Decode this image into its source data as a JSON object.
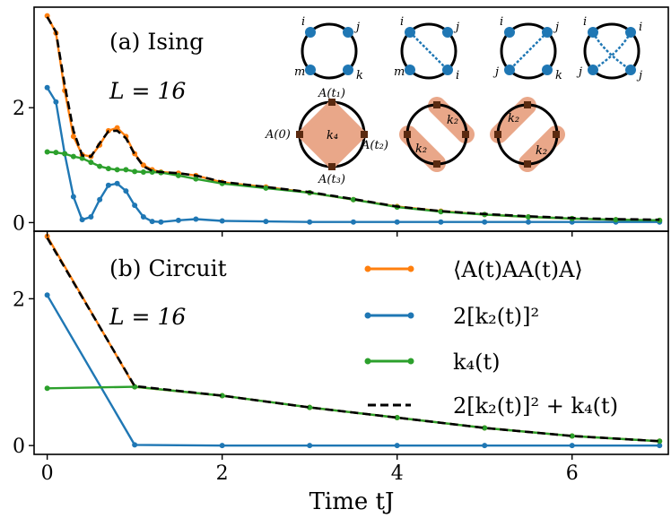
{
  "xlabel": "Time tJ",
  "legend": [
    {
      "label": "⟨A(t)AA(t)A⟩",
      "color": "#ff7f0e",
      "style": "solid-marker"
    },
    {
      "label": "2[k₂(t)]²",
      "color": "#1f77b4",
      "style": "solid-marker"
    },
    {
      "label": "k₄(t)",
      "color": "#2ca02c",
      "style": "solid-marker"
    },
    {
      "label": "2[k₂(t)]² + k₄(t)",
      "color": "#000000",
      "style": "dashed"
    }
  ],
  "panel_a": {
    "title": "(a)  Ising",
    "subtitle": "L = 16",
    "diagrams": {
      "circle1_labels": [
        "i",
        "j",
        "m",
        "k"
      ],
      "circle2_labels": [
        "i",
        "j",
        "m",
        "i"
      ],
      "circle3_labels": [
        "i",
        "j",
        "j",
        "k"
      ],
      "circle4_labels": [
        "i",
        "i",
        "j",
        "j"
      ],
      "k4_labels": [
        "A(t₁)",
        "A(0)",
        "A(t₂)",
        "A(t₃)",
        "k₄"
      ],
      "k2_labels": [
        "k₂",
        "k₂",
        "k₂",
        "k₂"
      ]
    }
  },
  "panel_b": {
    "title": "(b)  Circuit",
    "subtitle": "L = 16"
  },
  "chart_data": [
    {
      "type": "line",
      "panel": "a",
      "xlim": [
        -0.15,
        7.1
      ],
      "ylim": [
        -0.15,
        3.75
      ],
      "xticks": [
        0,
        2,
        4,
        6
      ],
      "yticks": [
        0,
        2
      ],
      "ytick_labels": [
        "0",
        "2"
      ],
      "series": [
        {
          "name": "⟨A(t)AA(t)A⟩",
          "color": "#ff7f0e",
          "x": [
            0,
            0.1,
            0.2,
            0.3,
            0.4,
            0.5,
            0.6,
            0.7,
            0.8,
            0.9,
            1.0,
            1.1,
            1.2,
            1.3,
            1.5,
            1.7,
            2.0,
            2.5,
            3.0,
            3.5,
            4.0,
            4.5,
            5.0,
            5.5,
            6.0,
            6.5,
            7.0
          ],
          "y": [
            3.6,
            3.3,
            2.3,
            1.5,
            1.18,
            1.15,
            1.35,
            1.6,
            1.65,
            1.5,
            1.2,
            1.0,
            0.92,
            0.88,
            0.86,
            0.82,
            0.7,
            0.62,
            0.52,
            0.4,
            0.28,
            0.2,
            0.14,
            0.1,
            0.07,
            0.05,
            0.04
          ]
        },
        {
          "name": "2[k₂(t)]²",
          "color": "#1f77b4",
          "x": [
            0,
            0.1,
            0.2,
            0.3,
            0.4,
            0.5,
            0.6,
            0.7,
            0.8,
            0.9,
            1.0,
            1.1,
            1.2,
            1.3,
            1.5,
            1.7,
            2.0,
            2.5,
            3.0,
            3.5,
            4.0,
            4.5,
            5.0,
            5.5,
            6.0,
            6.5,
            7.0
          ],
          "y": [
            2.35,
            2.1,
            1.2,
            0.45,
            0.05,
            0.1,
            0.4,
            0.65,
            0.68,
            0.55,
            0.3,
            0.1,
            0.02,
            0.01,
            0.04,
            0.06,
            0.03,
            0.02,
            0.01,
            0.01,
            0.01,
            0.01,
            0.01,
            0.01,
            0.01,
            0.01,
            0.01
          ]
        },
        {
          "name": "k₄(t)",
          "color": "#2ca02c",
          "x": [
            0,
            0.1,
            0.2,
            0.3,
            0.4,
            0.5,
            0.6,
            0.7,
            0.8,
            0.9,
            1.0,
            1.1,
            1.2,
            1.3,
            1.5,
            1.7,
            2.0,
            2.5,
            3.0,
            3.5,
            4.0,
            4.5,
            5.0,
            5.5,
            6.0,
            6.5,
            7.0
          ],
          "y": [
            1.23,
            1.22,
            1.2,
            1.15,
            1.12,
            1.05,
            0.98,
            0.94,
            0.92,
            0.92,
            0.89,
            0.88,
            0.88,
            0.87,
            0.82,
            0.76,
            0.68,
            0.6,
            0.52,
            0.4,
            0.27,
            0.19,
            0.14,
            0.1,
            0.07,
            0.05,
            0.04
          ]
        },
        {
          "name": "2[k₂(t)]² + k₄(t)",
          "color": "#000000",
          "dashed": true,
          "x": [
            0,
            0.1,
            0.2,
            0.3,
            0.4,
            0.5,
            0.6,
            0.7,
            0.8,
            0.9,
            1.0,
            1.1,
            1.2,
            1.3,
            1.5,
            1.7,
            2.0,
            2.5,
            3.0,
            3.5,
            4.0,
            4.5,
            5.0,
            5.5,
            6.0,
            6.5,
            7.0
          ],
          "y": [
            3.58,
            3.32,
            2.4,
            1.6,
            1.17,
            1.15,
            1.38,
            1.59,
            1.6,
            1.47,
            1.19,
            0.98,
            0.9,
            0.88,
            0.86,
            0.82,
            0.71,
            0.62,
            0.53,
            0.41,
            0.28,
            0.2,
            0.15,
            0.11,
            0.08,
            0.06,
            0.05
          ]
        }
      ]
    },
    {
      "type": "line",
      "panel": "b",
      "xlim": [
        -0.15,
        7.1
      ],
      "ylim": [
        -0.12,
        2.92
      ],
      "xticks": [
        0,
        2,
        4,
        6
      ],
      "xtick_labels": [
        "0",
        "2",
        "4",
        "6"
      ],
      "yticks": [
        0,
        2
      ],
      "ytick_labels": [
        "0",
        "2"
      ],
      "series": [
        {
          "name": "⟨A(t)AA(t)A⟩",
          "color": "#ff7f0e",
          "x": [
            0,
            1,
            2,
            3,
            4,
            5,
            6,
            7
          ],
          "y": [
            2.85,
            0.8,
            0.68,
            0.52,
            0.38,
            0.24,
            0.13,
            0.06
          ]
        },
        {
          "name": "2[k₂(t)]²",
          "color": "#1f77b4",
          "x": [
            0,
            1,
            2,
            3,
            4,
            5,
            6,
            7
          ],
          "y": [
            2.05,
            0.01,
            0.0,
            0.0,
            0.0,
            0.0,
            0.0,
            0.0
          ]
        },
        {
          "name": "k₄(t)",
          "color": "#2ca02c",
          "x": [
            0,
            1,
            2,
            3,
            4,
            5,
            6,
            7
          ],
          "y": [
            0.78,
            0.8,
            0.68,
            0.52,
            0.38,
            0.24,
            0.13,
            0.06
          ]
        },
        {
          "name": "2[k₂(t)]² + k₄(t)",
          "color": "#000000",
          "dashed": true,
          "x": [
            0,
            1,
            2,
            3,
            4,
            5,
            6,
            7
          ],
          "y": [
            2.83,
            0.81,
            0.68,
            0.52,
            0.38,
            0.24,
            0.13,
            0.06
          ]
        }
      ]
    }
  ]
}
